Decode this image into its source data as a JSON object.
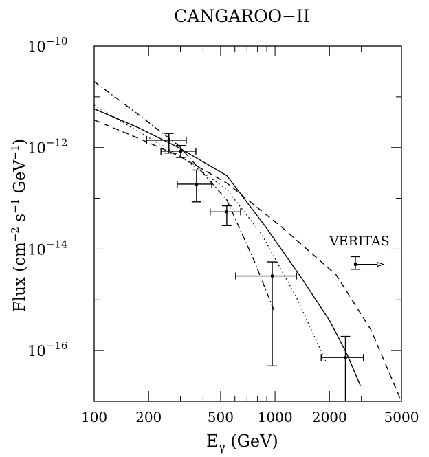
{
  "chart_data": {
    "type": "scatter",
    "title": "CANGAROO−II",
    "xlabel": {
      "base": "E",
      "sub": "γ",
      "unit": " (GeV)"
    },
    "ylabel": {
      "parts": [
        "Flux (cm",
        "−2",
        " s",
        "−1",
        " GeV",
        "−1",
        ")"
      ]
    },
    "xscale": "log",
    "yscale": "log",
    "xlim": [
      100,
      5000
    ],
    "ylim": [
      1e-17,
      1e-10
    ],
    "xticks": [
      {
        "v": 100,
        "label": "100"
      },
      {
        "v": 200,
        "label": "200"
      },
      {
        "v": 500,
        "label": "500"
      },
      {
        "v": 1000,
        "label": "1000"
      },
      {
        "v": 2000,
        "label": "2000"
      },
      {
        "v": 5000,
        "label": "5000"
      }
    ],
    "yticks": [
      {
        "v": 1e-10,
        "base": "10",
        "exp": "−10"
      },
      {
        "v": 1e-12,
        "base": "10",
        "exp": "−12"
      },
      {
        "v": 1e-14,
        "base": "10",
        "exp": "−14"
      },
      {
        "v": 1e-16,
        "base": "10",
        "exp": "−16"
      }
    ],
    "points": [
      {
        "E": 259,
        "F": 1.4e-12,
        "Elo": 195,
        "Ehi": 323,
        "Flo": 7.8e-13,
        "Fhi": 1.9e-12
      },
      {
        "E": 301,
        "F": 8.5e-13,
        "Elo": 234,
        "Ehi": 365,
        "Flo": 6.4e-13,
        "Fhi": 1.1e-12
      },
      {
        "E": 368,
        "F": 1.9e-13,
        "Elo": 288,
        "Ehi": 447,
        "Flo": 8.5e-14,
        "Fhi": 3.6e-13
      },
      {
        "E": 541,
        "F": 5.4e-14,
        "Elo": 438,
        "Ehi": 645,
        "Flo": 2.9e-14,
        "Fhi": 7.1e-14
      },
      {
        "E": 965,
        "F": 2.95e-15,
        "Elo": 606,
        "Ehi": 1313,
        "Flo": 5e-17,
        "Fhi": 5.6e-15
      },
      {
        "E": 2450,
        "F": 7.3e-17,
        "Elo": 1800,
        "Ehi": 3080,
        "Flo": 1e-17,
        "Fhi": 1.9e-16
      }
    ],
    "veritas": {
      "label": "VERITAS",
      "E": 2780,
      "F": 5e-15,
      "Flo": 4e-15,
      "Fhi": 7.1e-15,
      "arrow_to": 3980
    },
    "series": [
      {
        "name": "solid",
        "style": "solid",
        "points": [
          [
            100,
            5.8e-12
          ],
          [
            174,
            2.5e-12
          ],
          [
            293,
            1e-12
          ],
          [
            541,
            2.8e-13
          ],
          [
            890,
            2.7e-14
          ],
          [
            1420,
            2.5e-15
          ],
          [
            2010,
            3.8e-16
          ],
          [
            2500,
            8.5e-17
          ],
          [
            2970,
            2e-17
          ]
        ]
      },
      {
        "name": "dashed",
        "style": "dashed",
        "points": [
          [
            100,
            3.5e-12
          ],
          [
            174,
            1.55e-12
          ],
          [
            293,
            6.9e-13
          ],
          [
            541,
            2e-13
          ],
          [
            1090,
            2.7e-14
          ],
          [
            2180,
            3.1e-15
          ],
          [
            3380,
            2.6e-16
          ],
          [
            5000,
            1e-17
          ]
        ]
      },
      {
        "name": "dotted",
        "style": "dotted",
        "points": [
          [
            100,
            6.9e-12
          ],
          [
            174,
            2.1e-12
          ],
          [
            293,
            7.1e-13
          ],
          [
            541,
            1.5e-13
          ],
          [
            840,
            2e-14
          ],
          [
            1300,
            1.2e-15
          ],
          [
            1940,
            5.4e-17
          ]
        ]
      },
      {
        "name": "dash-dot",
        "style": "dashdot",
        "points": [
          [
            100,
            2e-11
          ],
          [
            174,
            4.6e-12
          ],
          [
            293,
            1.1e-12
          ],
          [
            541,
            9.3e-14
          ],
          [
            768,
            5.8e-15
          ],
          [
            1000,
            5.5e-16
          ]
        ]
      }
    ]
  }
}
